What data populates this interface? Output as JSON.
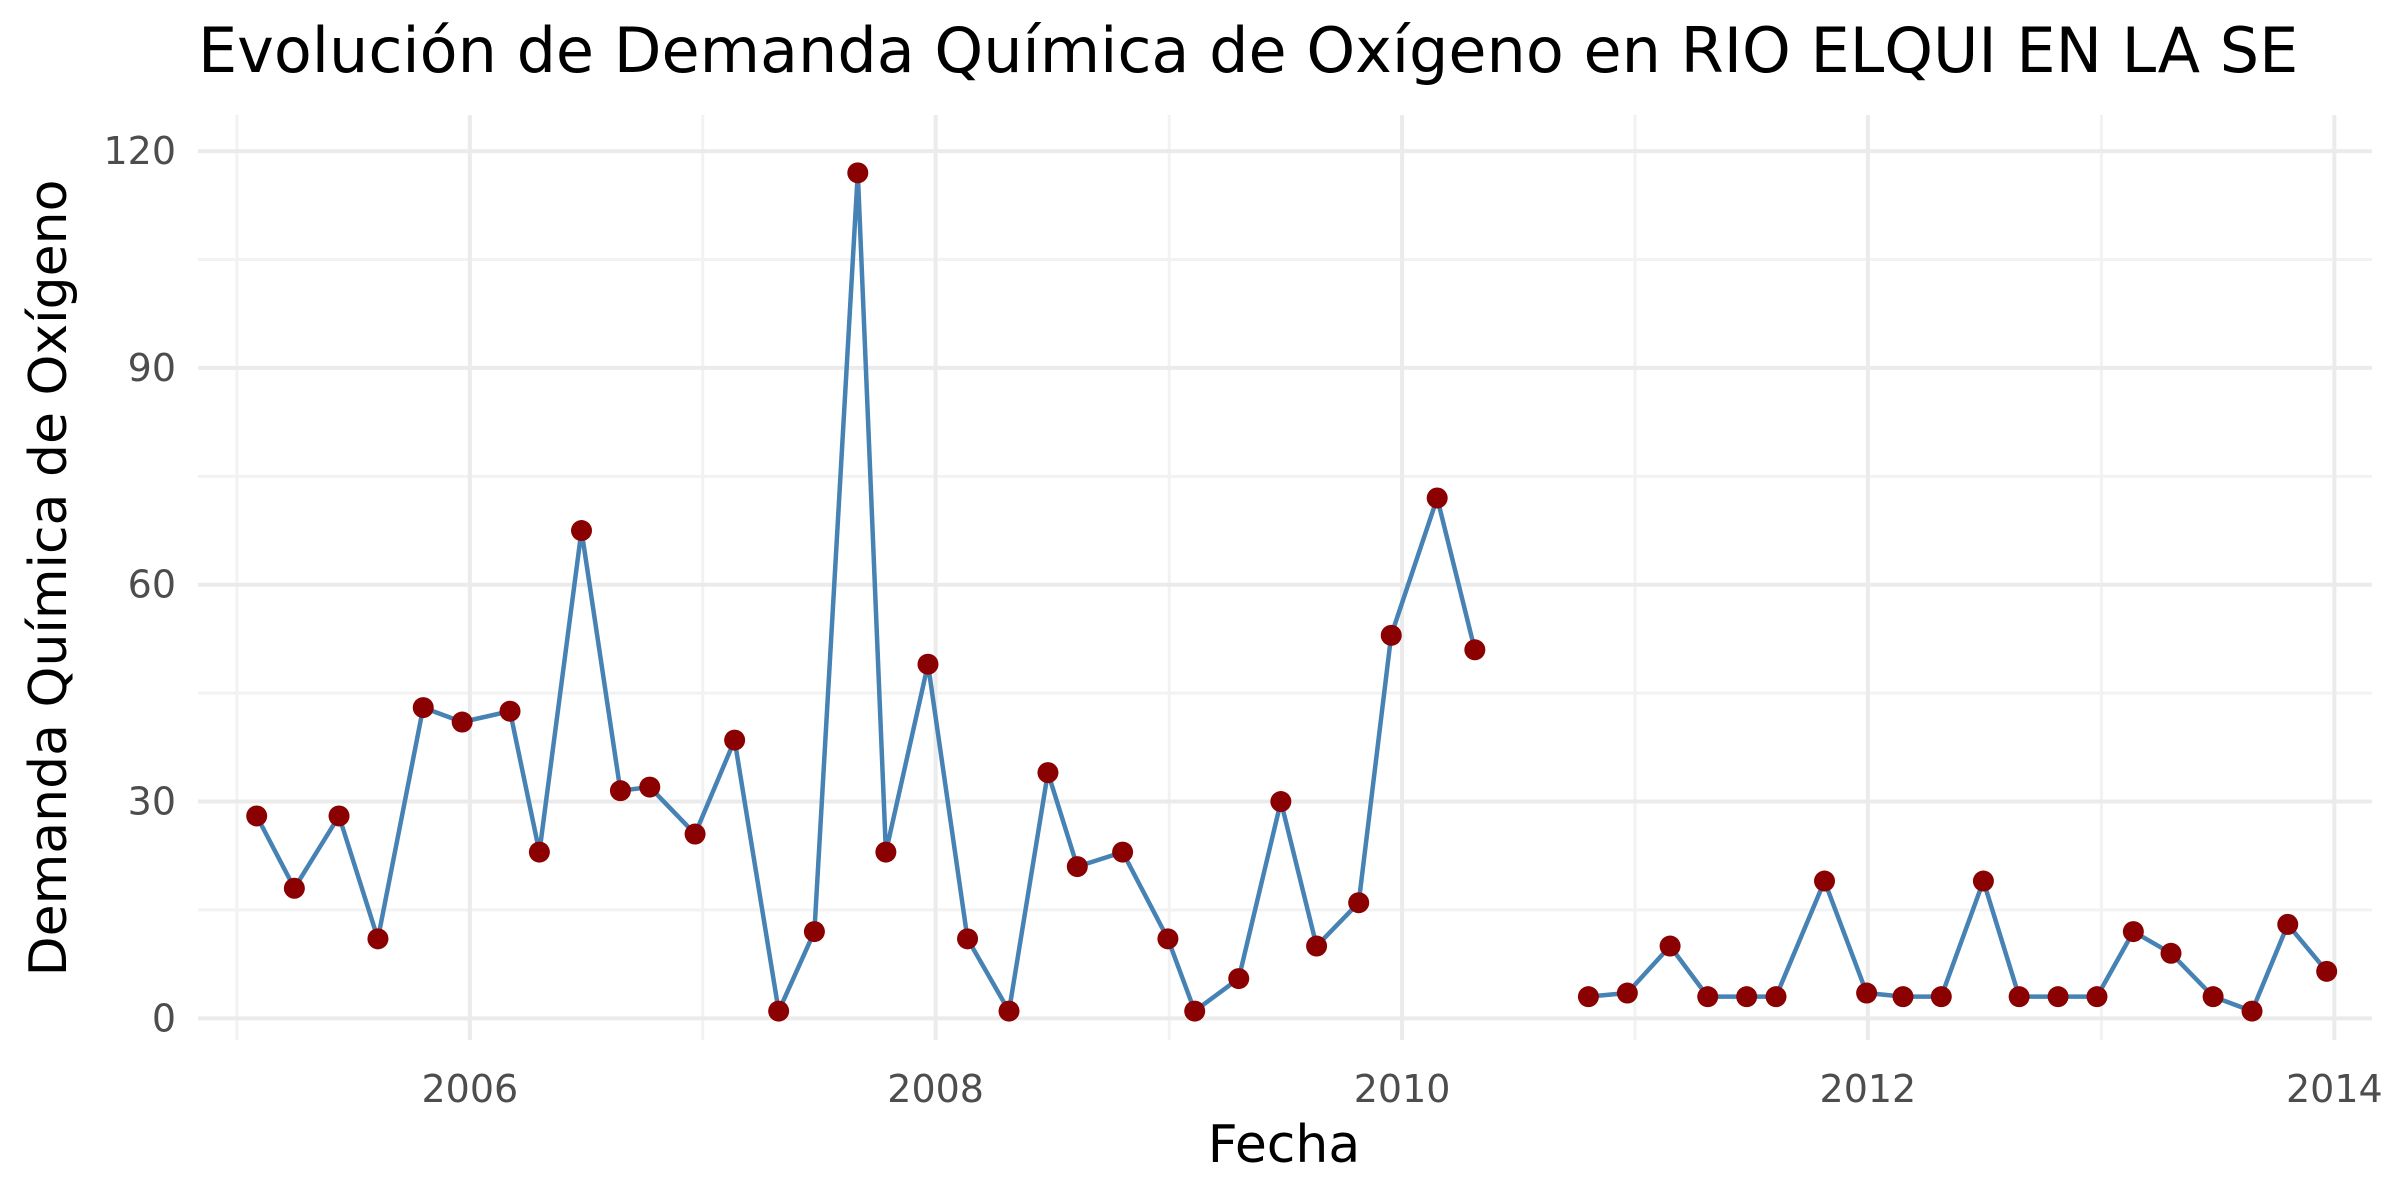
{
  "chart_data": {
    "type": "line",
    "title": "Evolución de Demanda Química de Oxígeno en RIO ELQUI EN LA SE",
    "xlabel": "Fecha",
    "ylabel": "Demanda Química de Oxígeno",
    "xlim": [
      "2004-11-01",
      "2014-03-01"
    ],
    "ylim": [
      -3,
      125
    ],
    "x_ticks": [
      {
        "date": "2006-01-01",
        "label": "2006"
      },
      {
        "date": "2008-01-01",
        "label": "2008"
      },
      {
        "date": "2010-01-01",
        "label": "2010"
      },
      {
        "date": "2012-01-01",
        "label": "2012"
      },
      {
        "date": "2014-01-01",
        "label": "2014"
      }
    ],
    "x_minor_ticks": [
      "2005-01-01",
      "2007-01-01",
      "2009-01-01",
      "2011-01-01",
      "2013-01-01"
    ],
    "y_ticks": [
      0,
      30,
      60,
      90,
      120
    ],
    "y_minor_ticks": [
      15,
      45,
      75,
      105
    ],
    "grid": true,
    "line_color": "#4682b4",
    "point_color": "#8b0000",
    "series": [
      {
        "segments": [
          [
            {
              "x": "2005-02-01",
              "y": 28
            },
            {
              "x": "2005-04-01",
              "y": 18
            },
            {
              "x": "2005-06-10",
              "y": 28
            },
            {
              "x": "2005-08-10",
              "y": 11
            },
            {
              "x": "2005-10-20",
              "y": 43
            },
            {
              "x": "2005-12-20",
              "y": 41
            },
            {
              "x": "2006-03-05",
              "y": 42.5
            },
            {
              "x": "2006-04-20",
              "y": 23
            },
            {
              "x": "2006-06-25",
              "y": 67.5
            },
            {
              "x": "2006-08-25",
              "y": 31.5
            },
            {
              "x": "2006-10-10",
              "y": 32
            },
            {
              "x": "2006-12-20",
              "y": 25.5
            },
            {
              "x": "2007-02-20",
              "y": 38.5
            },
            {
              "x": "2007-04-30",
              "y": 1
            },
            {
              "x": "2007-06-25",
              "y": 12
            },
            {
              "x": "2007-09-01",
              "y": 117
            },
            {
              "x": "2007-10-15",
              "y": 23
            },
            {
              "x": "2007-12-20",
              "y": 49
            },
            {
              "x": "2008-02-20",
              "y": 11
            },
            {
              "x": "2008-04-25",
              "y": 1
            },
            {
              "x": "2008-06-25",
              "y": 34
            },
            {
              "x": "2008-08-10",
              "y": 21
            },
            {
              "x": "2008-10-20",
              "y": 23
            },
            {
              "x": "2008-12-30",
              "y": 11
            },
            {
              "x": "2009-02-10",
              "y": 1
            },
            {
              "x": "2009-04-20",
              "y": 5.5
            },
            {
              "x": "2009-06-25",
              "y": 30
            },
            {
              "x": "2009-08-20",
              "y": 10
            },
            {
              "x": "2009-10-25",
              "y": 16
            },
            {
              "x": "2009-12-15",
              "y": 53
            },
            {
              "x": "2010-02-25",
              "y": 72
            },
            {
              "x": "2010-04-25",
              "y": 51
            }
          ],
          [
            {
              "x": "2010-10-20",
              "y": 3
            },
            {
              "x": "2010-12-20",
              "y": 3.5
            },
            {
              "x": "2011-02-25",
              "y": 10
            },
            {
              "x": "2011-04-25",
              "y": 3
            },
            {
              "x": "2011-06-25",
              "y": 3
            },
            {
              "x": "2011-08-10",
              "y": 3
            },
            {
              "x": "2011-10-25",
              "y": 19
            },
            {
              "x": "2011-12-30",
              "y": 3.5
            },
            {
              "x": "2012-02-25",
              "y": 3
            },
            {
              "x": "2012-04-25",
              "y": 3
            },
            {
              "x": "2012-06-30",
              "y": 19
            },
            {
              "x": "2012-08-25",
              "y": 3
            },
            {
              "x": "2012-10-25",
              "y": 3
            },
            {
              "x": "2012-12-25",
              "y": 3
            },
            {
              "x": "2013-02-20",
              "y": 12
            },
            {
              "x": "2013-04-20",
              "y": 9
            },
            {
              "x": "2013-06-25",
              "y": 3
            },
            {
              "x": "2013-08-25",
              "y": 1
            },
            {
              "x": "2013-10-20",
              "y": 13
            },
            {
              "x": "2013-12-20",
              "y": 6.5
            }
          ]
        ]
      }
    ]
  }
}
